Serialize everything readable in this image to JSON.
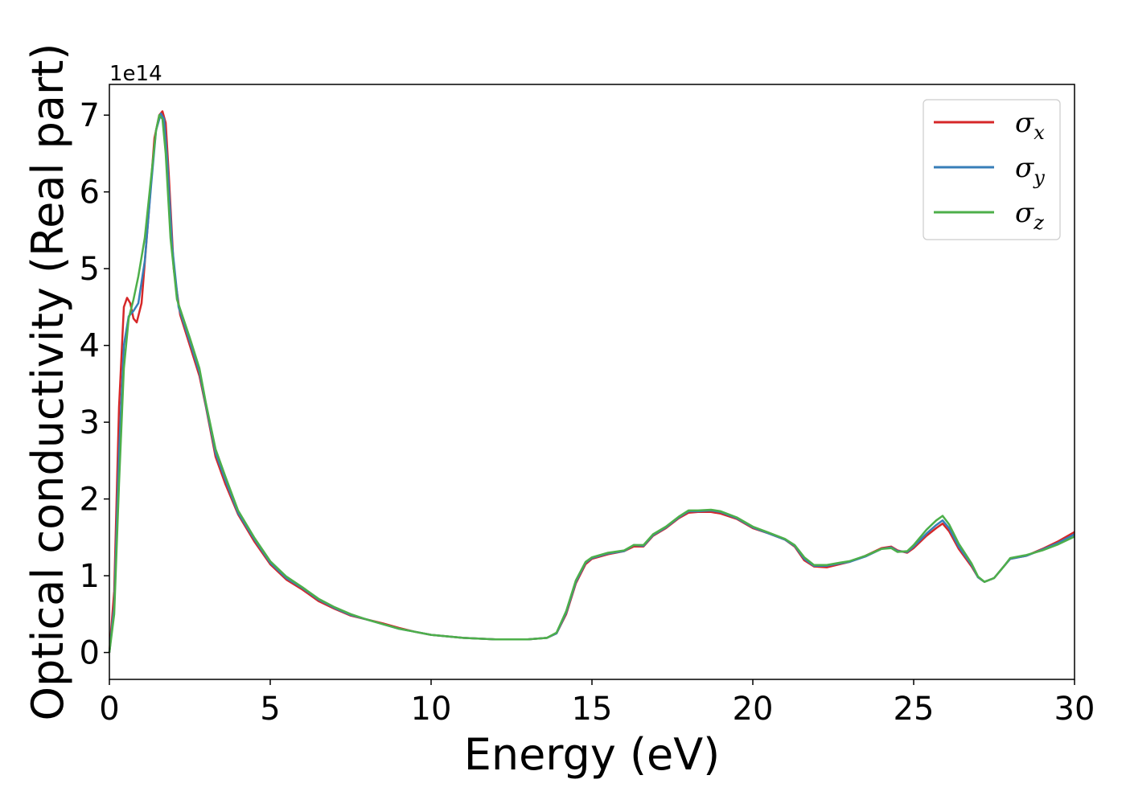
{
  "chart_data": {
    "type": "line",
    "xlabel": "Energy (eV)",
    "ylabel": "Optical conductivity (Real part)",
    "y_offset_label": "1e14",
    "xlim": [
      0,
      30
    ],
    "ylim": [
      -0.35,
      7.4
    ],
    "x_ticks": [
      0,
      5,
      10,
      15,
      20,
      25,
      30
    ],
    "y_ticks": [
      0,
      1,
      2,
      3,
      4,
      5,
      6,
      7
    ],
    "grid": false,
    "legend_position": "top-right",
    "series": [
      {
        "name": "σx",
        "base": "σ",
        "sub": "x",
        "color": "#d62728",
        "points": [
          [
            0,
            0.0
          ],
          [
            0.15,
            0.8
          ],
          [
            0.3,
            3.2
          ],
          [
            0.45,
            4.5
          ],
          [
            0.55,
            4.62
          ],
          [
            0.65,
            4.55
          ],
          [
            0.75,
            4.35
          ],
          [
            0.85,
            4.3
          ],
          [
            1.0,
            4.55
          ],
          [
            1.2,
            5.6
          ],
          [
            1.4,
            6.7
          ],
          [
            1.55,
            7.0
          ],
          [
            1.65,
            7.05
          ],
          [
            1.75,
            6.9
          ],
          [
            1.85,
            6.2
          ],
          [
            2.0,
            5.0
          ],
          [
            2.2,
            4.4
          ],
          [
            2.5,
            4.0
          ],
          [
            2.8,
            3.6
          ],
          [
            3.0,
            3.2
          ],
          [
            3.3,
            2.55
          ],
          [
            3.6,
            2.2
          ],
          [
            4.0,
            1.8
          ],
          [
            4.5,
            1.45
          ],
          [
            5.0,
            1.15
          ],
          [
            5.5,
            0.95
          ],
          [
            6.0,
            0.82
          ],
          [
            6.5,
            0.67
          ],
          [
            7.0,
            0.57
          ],
          [
            7.5,
            0.48
          ],
          [
            8.0,
            0.43
          ],
          [
            8.5,
            0.38
          ],
          [
            9.0,
            0.32
          ],
          [
            9.5,
            0.27
          ],
          [
            10.0,
            0.23
          ],
          [
            11.0,
            0.19
          ],
          [
            12.0,
            0.17
          ],
          [
            13.0,
            0.17
          ],
          [
            13.6,
            0.19
          ],
          [
            13.9,
            0.25
          ],
          [
            14.2,
            0.5
          ],
          [
            14.5,
            0.9
          ],
          [
            14.8,
            1.15
          ],
          [
            15.0,
            1.22
          ],
          [
            15.5,
            1.28
          ],
          [
            16.0,
            1.32
          ],
          [
            16.3,
            1.38
          ],
          [
            16.6,
            1.38
          ],
          [
            16.9,
            1.52
          ],
          [
            17.3,
            1.62
          ],
          [
            17.7,
            1.75
          ],
          [
            18.0,
            1.82
          ],
          [
            18.3,
            1.83
          ],
          [
            18.7,
            1.83
          ],
          [
            19.0,
            1.81
          ],
          [
            19.5,
            1.74
          ],
          [
            20.0,
            1.62
          ],
          [
            20.5,
            1.55
          ],
          [
            21.0,
            1.47
          ],
          [
            21.3,
            1.38
          ],
          [
            21.6,
            1.2
          ],
          [
            21.9,
            1.12
          ],
          [
            22.3,
            1.11
          ],
          [
            22.7,
            1.15
          ],
          [
            23.0,
            1.18
          ],
          [
            23.5,
            1.26
          ],
          [
            24.0,
            1.36
          ],
          [
            24.3,
            1.38
          ],
          [
            24.5,
            1.33
          ],
          [
            24.8,
            1.3
          ],
          [
            25.0,
            1.36
          ],
          [
            25.4,
            1.52
          ],
          [
            25.7,
            1.62
          ],
          [
            25.9,
            1.68
          ],
          [
            26.1,
            1.58
          ],
          [
            26.4,
            1.35
          ],
          [
            26.8,
            1.12
          ],
          [
            27.0,
            0.98
          ],
          [
            27.2,
            0.92
          ],
          [
            27.5,
            0.97
          ],
          [
            27.8,
            1.12
          ],
          [
            28.0,
            1.22
          ],
          [
            28.5,
            1.26
          ],
          [
            29.0,
            1.35
          ],
          [
            29.5,
            1.45
          ],
          [
            30.0,
            1.57
          ]
        ]
      },
      {
        "name": "σy",
        "base": "σ",
        "sub": "y",
        "color": "#377eb8",
        "points": [
          [
            0,
            0.0
          ],
          [
            0.15,
            0.6
          ],
          [
            0.3,
            2.6
          ],
          [
            0.45,
            4.0
          ],
          [
            0.6,
            4.38
          ],
          [
            0.75,
            4.45
          ],
          [
            0.9,
            4.55
          ],
          [
            1.1,
            5.1
          ],
          [
            1.3,
            6.1
          ],
          [
            1.45,
            6.8
          ],
          [
            1.6,
            7.02
          ],
          [
            1.7,
            6.95
          ],
          [
            1.8,
            6.4
          ],
          [
            1.95,
            5.3
          ],
          [
            2.15,
            4.5
          ],
          [
            2.5,
            4.05
          ],
          [
            2.8,
            3.65
          ],
          [
            3.0,
            3.22
          ],
          [
            3.3,
            2.6
          ],
          [
            3.6,
            2.25
          ],
          [
            4.0,
            1.82
          ],
          [
            4.5,
            1.48
          ],
          [
            5.0,
            1.17
          ],
          [
            5.5,
            0.97
          ],
          [
            6.0,
            0.84
          ],
          [
            6.5,
            0.69
          ],
          [
            7.0,
            0.58
          ],
          [
            7.5,
            0.49
          ],
          [
            8.0,
            0.43
          ],
          [
            8.5,
            0.37
          ],
          [
            9.0,
            0.31
          ],
          [
            9.5,
            0.27
          ],
          [
            10.0,
            0.23
          ],
          [
            11.0,
            0.19
          ],
          [
            12.0,
            0.17
          ],
          [
            13.0,
            0.17
          ],
          [
            13.6,
            0.19
          ],
          [
            13.9,
            0.25
          ],
          [
            14.2,
            0.52
          ],
          [
            14.5,
            0.92
          ],
          [
            14.8,
            1.17
          ],
          [
            15.0,
            1.23
          ],
          [
            15.5,
            1.29
          ],
          [
            16.0,
            1.32
          ],
          [
            16.3,
            1.4
          ],
          [
            16.6,
            1.39
          ],
          [
            16.9,
            1.53
          ],
          [
            17.3,
            1.63
          ],
          [
            17.7,
            1.76
          ],
          [
            18.0,
            1.84
          ],
          [
            18.3,
            1.84
          ],
          [
            18.7,
            1.85
          ],
          [
            19.0,
            1.83
          ],
          [
            19.5,
            1.75
          ],
          [
            20.0,
            1.63
          ],
          [
            20.5,
            1.55
          ],
          [
            21.0,
            1.47
          ],
          [
            21.3,
            1.39
          ],
          [
            21.6,
            1.22
          ],
          [
            21.9,
            1.13
          ],
          [
            22.3,
            1.13
          ],
          [
            22.7,
            1.16
          ],
          [
            23.0,
            1.18
          ],
          [
            23.5,
            1.25
          ],
          [
            24.0,
            1.35
          ],
          [
            24.3,
            1.37
          ],
          [
            24.5,
            1.32
          ],
          [
            24.8,
            1.31
          ],
          [
            25.0,
            1.38
          ],
          [
            25.4,
            1.55
          ],
          [
            25.7,
            1.66
          ],
          [
            25.9,
            1.72
          ],
          [
            26.1,
            1.62
          ],
          [
            26.4,
            1.38
          ],
          [
            26.8,
            1.14
          ],
          [
            27.0,
            0.98
          ],
          [
            27.2,
            0.92
          ],
          [
            27.5,
            0.97
          ],
          [
            27.8,
            1.12
          ],
          [
            28.0,
            1.22
          ],
          [
            28.5,
            1.26
          ],
          [
            29.0,
            1.34
          ],
          [
            29.5,
            1.43
          ],
          [
            30.0,
            1.54
          ]
        ]
      },
      {
        "name": "σz",
        "base": "σ",
        "sub": "z",
        "color": "#4daf4a",
        "points": [
          [
            0,
            0.0
          ],
          [
            0.15,
            0.5
          ],
          [
            0.3,
            2.2
          ],
          [
            0.45,
            3.7
          ],
          [
            0.6,
            4.35
          ],
          [
            0.75,
            4.6
          ],
          [
            0.9,
            4.9
          ],
          [
            1.1,
            5.4
          ],
          [
            1.3,
            6.2
          ],
          [
            1.45,
            6.8
          ],
          [
            1.55,
            7.0
          ],
          [
            1.65,
            6.95
          ],
          [
            1.75,
            6.5
          ],
          [
            1.9,
            5.4
          ],
          [
            2.1,
            4.6
          ],
          [
            2.5,
            4.1
          ],
          [
            2.8,
            3.7
          ],
          [
            3.0,
            3.25
          ],
          [
            3.3,
            2.65
          ],
          [
            3.6,
            2.3
          ],
          [
            4.0,
            1.85
          ],
          [
            4.5,
            1.5
          ],
          [
            5.0,
            1.19
          ],
          [
            5.5,
            0.99
          ],
          [
            6.0,
            0.85
          ],
          [
            6.5,
            0.7
          ],
          [
            7.0,
            0.59
          ],
          [
            7.5,
            0.5
          ],
          [
            8.0,
            0.43
          ],
          [
            8.5,
            0.37
          ],
          [
            9.0,
            0.31
          ],
          [
            9.5,
            0.27
          ],
          [
            10.0,
            0.23
          ],
          [
            11.0,
            0.19
          ],
          [
            12.0,
            0.17
          ],
          [
            13.0,
            0.17
          ],
          [
            13.6,
            0.19
          ],
          [
            13.9,
            0.26
          ],
          [
            14.2,
            0.54
          ],
          [
            14.5,
            0.94
          ],
          [
            14.8,
            1.18
          ],
          [
            15.0,
            1.24
          ],
          [
            15.5,
            1.3
          ],
          [
            16.0,
            1.33
          ],
          [
            16.3,
            1.4
          ],
          [
            16.6,
            1.4
          ],
          [
            16.9,
            1.54
          ],
          [
            17.3,
            1.64
          ],
          [
            17.7,
            1.77
          ],
          [
            18.0,
            1.85
          ],
          [
            18.3,
            1.85
          ],
          [
            18.7,
            1.86
          ],
          [
            19.0,
            1.84
          ],
          [
            19.5,
            1.76
          ],
          [
            20.0,
            1.64
          ],
          [
            20.5,
            1.56
          ],
          [
            21.0,
            1.48
          ],
          [
            21.3,
            1.4
          ],
          [
            21.6,
            1.24
          ],
          [
            21.9,
            1.14
          ],
          [
            22.3,
            1.14
          ],
          [
            22.7,
            1.17
          ],
          [
            23.0,
            1.19
          ],
          [
            23.5,
            1.26
          ],
          [
            24.0,
            1.35
          ],
          [
            24.3,
            1.36
          ],
          [
            24.5,
            1.31
          ],
          [
            24.8,
            1.32
          ],
          [
            25.0,
            1.4
          ],
          [
            25.4,
            1.6
          ],
          [
            25.7,
            1.72
          ],
          [
            25.9,
            1.78
          ],
          [
            26.1,
            1.67
          ],
          [
            26.4,
            1.42
          ],
          [
            26.8,
            1.16
          ],
          [
            27.0,
            0.99
          ],
          [
            27.2,
            0.92
          ],
          [
            27.5,
            0.97
          ],
          [
            27.8,
            1.12
          ],
          [
            28.0,
            1.23
          ],
          [
            28.5,
            1.27
          ],
          [
            29.0,
            1.33
          ],
          [
            29.5,
            1.41
          ],
          [
            30.0,
            1.51
          ]
        ]
      }
    ]
  }
}
